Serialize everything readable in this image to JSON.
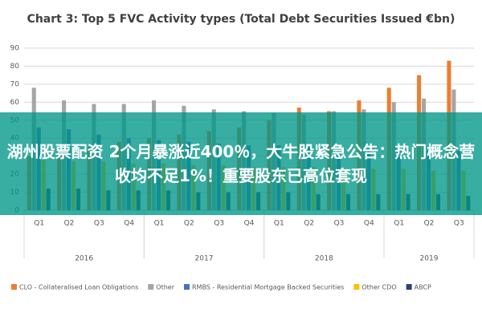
{
  "chart_data": {
    "type": "bar",
    "title": "Chart 3: Top 5 FVC Activity types (Total Debt Securities Issued €bn)",
    "categories": [
      "Q1",
      "Q2",
      "Q3",
      "Q4",
      "Q1",
      "Q2",
      "Q3",
      "Q4",
      "Q1",
      "Q2",
      "Q3",
      "Q4",
      "Q1",
      "Q2",
      "Q3"
    ],
    "x_groups": [
      "2016",
      "2017",
      "2018",
      "2019"
    ],
    "series": [
      {
        "name": "CLO - Collateralised Loan Obligations",
        "color": "#ed7d31",
        "values": [
          30,
          33,
          35,
          38,
          40,
          42,
          44,
          46,
          50,
          57,
          55,
          61,
          68,
          75,
          83
        ]
      },
      {
        "name": "Other",
        "color": "#a5a5a5",
        "values": [
          68,
          61,
          59,
          59,
          61,
          58,
          56,
          55,
          54,
          53,
          55,
          56,
          60,
          62,
          67
        ]
      },
      {
        "name": "RMBS - Residential Mortgage Backed Securities",
        "color": "#4472c4",
        "values": [
          46,
          45,
          42,
          40,
          39,
          38,
          37,
          36,
          36,
          35,
          35,
          34,
          34,
          33,
          33
        ]
      },
      {
        "name": "Other CDO",
        "color": "#ffc000",
        "values": [
          28,
          27,
          27,
          26,
          26,
          25,
          25,
          24,
          24,
          24,
          23,
          23,
          23,
          22,
          22
        ]
      },
      {
        "name": "ABCP",
        "color": "#264478",
        "values": [
          12,
          12,
          11,
          11,
          11,
          10,
          10,
          10,
          10,
          9,
          9,
          9,
          9,
          9,
          8
        ]
      }
    ],
    "ylim": [
      0,
      90
    ],
    "yticks": [
      0,
      10,
      20,
      30,
      40,
      50,
      60,
      70,
      80,
      90
    ],
    "grid": true
  },
  "overlay": {
    "text": "湖州股票配资 2个月暴涨近400％，大牛股紧急公告：热门概念营收均不足1%！重要股东已高位套现"
  }
}
